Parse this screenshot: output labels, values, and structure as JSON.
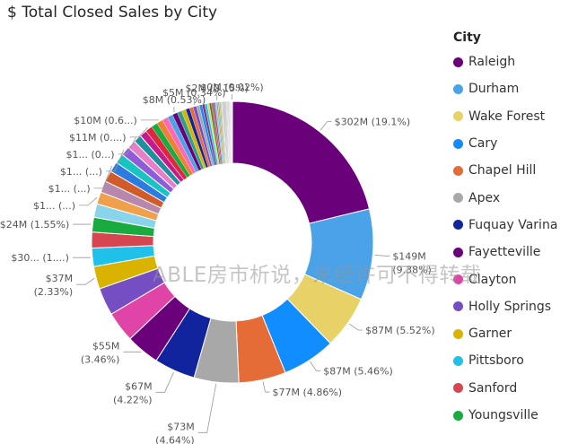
{
  "chart_data": {
    "type": "pie",
    "donut": true,
    "title": "$ Total Closed Sales by City",
    "legend_title": "City",
    "legend_position": "right",
    "slices": [
      {
        "name": "Raleigh",
        "value": 302,
        "label": "$302M (19.1%)",
        "color": "#6b007b"
      },
      {
        "name": "Durham",
        "value": 149,
        "label": "$149M (9.38%)",
        "color": "#4aa3e8"
      },
      {
        "name": "Wake Forest",
        "value": 87,
        "label": "$87M (5.52%)",
        "color": "#e8d166"
      },
      {
        "name": "Cary",
        "value": 87,
        "label": "$87M (5.46%)",
        "color": "#118dff"
      },
      {
        "name": "Chapel Hill",
        "value": 77,
        "label": "$77M (4.86%)",
        "color": "#e66c37"
      },
      {
        "name": "Apex",
        "value": 73,
        "label": "$73M (4.64%)",
        "color": "#a8a8a8"
      },
      {
        "name": "Fuquay Varina",
        "value": 67,
        "label": "$67M (4.22%)",
        "color": "#12239e"
      },
      {
        "name": "Fayetteville",
        "value": 55,
        "label": "$55M (3.46%)",
        "color": "#6b007b"
      },
      {
        "name": "Clayton",
        "value": 50,
        "label": "",
        "color": "#e044a7"
      },
      {
        "name": "Holly Springs",
        "value": 45,
        "label": "",
        "color": "#744ec2"
      },
      {
        "name": "Garner",
        "value": 37,
        "label": "$37M (2.33%)",
        "color": "#d9b300"
      },
      {
        "name": "Pittsboro",
        "value": 30,
        "label": "$30... (1....)",
        "color": "#1fc0ea"
      },
      {
        "name": "Sanford",
        "value": 26,
        "label": "",
        "color": "#d64550"
      },
      {
        "name": "Youngsville",
        "value": 24,
        "label": "$24M (1.55%)",
        "color": "#1aab40"
      },
      {
        "name": "",
        "value": 22,
        "label": "",
        "color": "#8ad4eb"
      },
      {
        "name": "",
        "value": 20,
        "label": "$1... (...)",
        "color": "#f0a04b"
      },
      {
        "name": "",
        "value": 19,
        "label": "",
        "color": "#b887ad"
      },
      {
        "name": "",
        "value": 18,
        "label": "",
        "color": "#d35b2a"
      },
      {
        "name": "",
        "value": 17,
        "label": "$1... (...)",
        "color": "#2b7be0"
      },
      {
        "name": "",
        "value": 16,
        "label": "",
        "color": "#17c3c3"
      },
      {
        "name": "",
        "value": 15,
        "label": "$1... (...)",
        "color": "#8f5cd9"
      },
      {
        "name": "",
        "value": 14,
        "label": "",
        "color": "#e57fc9"
      },
      {
        "name": "",
        "value": 13,
        "label": "$1... (0...)",
        "color": "#1e90a0"
      },
      {
        "name": "",
        "value": 12,
        "label": "",
        "color": "#c61a8c"
      },
      {
        "name": "",
        "value": 11,
        "label": "$11M (0....)",
        "color": "#e0263c"
      },
      {
        "name": "",
        "value": 10.5,
        "label": "",
        "color": "#1aab40"
      },
      {
        "name": "",
        "value": 10,
        "label": "$10M (0.6...)",
        "color": "#f08030"
      },
      {
        "name": "",
        "value": 9.5,
        "label": "",
        "color": "#ff69b4"
      },
      {
        "name": "",
        "value": 9,
        "label": "",
        "color": "#4aa3e8"
      },
      {
        "name": "",
        "value": 8.4,
        "label": "$8M (0.53%)",
        "color": "#6b007b"
      },
      {
        "name": "",
        "value": 7.5,
        "label": "",
        "color": "#2ca089"
      },
      {
        "name": "",
        "value": 7,
        "label": "",
        "color": "#d9b300"
      },
      {
        "name": "",
        "value": 6.5,
        "label": "",
        "color": "#12239e"
      },
      {
        "name": "",
        "value": 6,
        "label": "",
        "color": "#e66c37"
      },
      {
        "name": "",
        "value": 5.4,
        "label": "$5M (0.34%)",
        "color": "#744ec2"
      },
      {
        "name": "",
        "value": 5,
        "label": "",
        "color": "#a8a8a8"
      },
      {
        "name": "",
        "value": 4.6,
        "label": "",
        "color": "#118dff"
      },
      {
        "name": "",
        "value": 4.2,
        "label": "",
        "color": "#8a2d6b"
      },
      {
        "name": "",
        "value": 3.9,
        "label": "",
        "color": "#1fc0ea"
      },
      {
        "name": "",
        "value": 3.6,
        "label": "",
        "color": "#e8d166"
      },
      {
        "name": "",
        "value": 3.3,
        "label": "",
        "color": "#3c7a3c"
      },
      {
        "name": "",
        "value": 3.0,
        "label": "",
        "color": "#d64550"
      },
      {
        "name": "",
        "value": 2.8,
        "label": "",
        "color": "#5a5a8a"
      },
      {
        "name": "",
        "value": 2.6,
        "label": "",
        "color": "#b6b6b6"
      },
      {
        "name": "",
        "value": 2.4,
        "label": "$2M (0.15%)",
        "color": "#6bb0e0"
      },
      {
        "name": "",
        "value": 2.2,
        "label": "",
        "color": "#c9a227"
      },
      {
        "name": "",
        "value": 2.0,
        "label": "",
        "color": "#8fbf6f"
      },
      {
        "name": "",
        "value": 1.9,
        "label": "",
        "color": "#c0c0c0"
      },
      {
        "name": "",
        "value": 1.8,
        "label": "",
        "color": "#d9d9d9"
      },
      {
        "name": "",
        "value": 1.7,
        "label": "",
        "color": "#9e9e9e"
      },
      {
        "name": "",
        "value": 1.6,
        "label": "",
        "color": "#b8b8b8"
      },
      {
        "name": "",
        "value": 1.5,
        "label": "",
        "color": "#a6a6a6"
      },
      {
        "name": "",
        "value": 1.4,
        "label": "",
        "color": "#d0d0d0"
      },
      {
        "name": "",
        "value": 1.3,
        "label": "",
        "color": "#bdbdbd"
      },
      {
        "name": "",
        "value": 1.2,
        "label": "",
        "color": "#cfcfcf"
      },
      {
        "name": "",
        "value": 1.1,
        "label": "",
        "color": "#aaaaaa"
      },
      {
        "name": "",
        "value": 1.0,
        "label": "",
        "color": "#c4c4c4"
      },
      {
        "name": "",
        "value": 0.9,
        "label": "",
        "color": "#b0b0b0"
      },
      {
        "name": "",
        "value": 0.8,
        "label": "",
        "color": "#d6d6d6"
      },
      {
        "name": "",
        "value": 0.7,
        "label": "",
        "color": "#a0a0a0"
      },
      {
        "name": "",
        "value": 0.6,
        "label": "",
        "color": "#c8c8c8"
      },
      {
        "name": "",
        "value": 0.5,
        "label": "",
        "color": "#bababa"
      },
      {
        "name": "",
        "value": 0.4,
        "label": "",
        "color": "#9a9a9a"
      },
      {
        "name": "",
        "value": 0.3,
        "label": "$0M (0.02%)",
        "color": "#cccccc"
      },
      {
        "name": "",
        "value": 0.3,
        "label": "",
        "color": "#adadad"
      },
      {
        "name": "",
        "value": 0.3,
        "label": "",
        "color": "#d2d2d2"
      }
    ]
  },
  "watermark": "ABLE房市析说，未经许可不得转载"
}
